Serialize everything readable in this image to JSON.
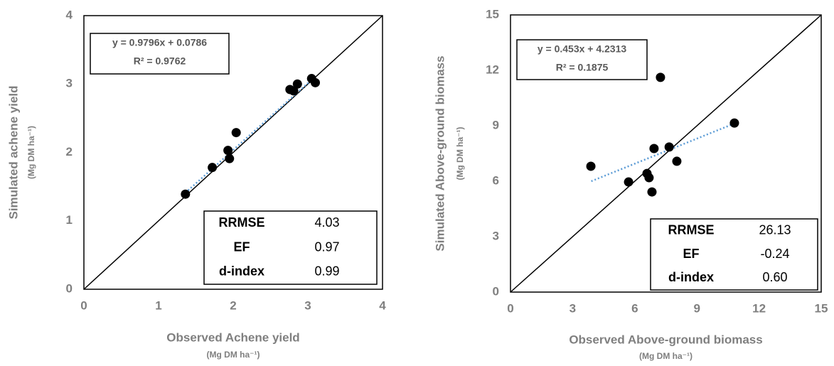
{
  "chart_data": [
    {
      "type": "scatter",
      "x_label": "Observed Achene yield",
      "x_unit": "(Mg DM ha⁻¹)",
      "y_label": "Simulated achene yield",
      "y_unit": "(Mg DM ha⁻¹)",
      "xlim": [
        0,
        4
      ],
      "ylim": [
        0,
        4
      ],
      "xticks": [
        0,
        1,
        2,
        3,
        4
      ],
      "yticks": [
        0,
        1,
        2,
        3,
        4
      ],
      "color": "#000000",
      "trend_color": "#5b9bd5",
      "x": [
        1.36,
        1.72,
        2.04,
        1.93,
        1.95,
        2.76,
        2.81,
        2.86,
        3.05,
        3.1
      ],
      "values": [
        1.39,
        1.78,
        2.29,
        2.03,
        1.91,
        2.92,
        2.9,
        3.0,
        3.08,
        3.02
      ],
      "trendline": {
        "x": [
          1.36,
          3.1
        ],
        "y": [
          1.41,
          3.11
        ]
      },
      "annotations": [
        "y = 0.9796x + 0.0786",
        "R² = 0.9762"
      ],
      "stats": [
        [
          "RRMSE",
          "4.03"
        ],
        [
          "EF",
          "0.97"
        ],
        [
          "d-index",
          "0.99"
        ]
      ]
    },
    {
      "type": "scatter",
      "x_label": "Observed Above-ground biomass",
      "x_unit": "(Mg DM ha⁻¹)",
      "y_label": "Simulated Above-ground biomass",
      "y_unit": "(Mg DM ha⁻¹)",
      "xlim": [
        0,
        15
      ],
      "ylim": [
        0,
        15
      ],
      "xticks": [
        0,
        3,
        6,
        9,
        12,
        15
      ],
      "yticks": [
        0,
        3,
        6,
        9,
        12,
        15
      ],
      "color": "#000000",
      "trend_color": "#5b9bd5",
      "x": [
        3.88,
        5.7,
        6.59,
        6.69,
        6.83,
        6.93,
        7.24,
        7.66,
        8.03,
        10.81
      ],
      "values": [
        6.81,
        5.96,
        6.42,
        6.19,
        5.42,
        7.77,
        11.62,
        7.85,
        7.08,
        9.15
      ],
      "trendline": {
        "x": [
          3.9,
          10.8
        ],
        "y": [
          6.0,
          9.12
        ]
      },
      "annotations": [
        "y = 0.453x + 4.2313",
        "R² = 0.1875"
      ],
      "stats": [
        [
          "RRMSE",
          "26.13"
        ],
        [
          "EF",
          "-0.24"
        ],
        [
          "d-index",
          "0.60"
        ]
      ]
    }
  ]
}
